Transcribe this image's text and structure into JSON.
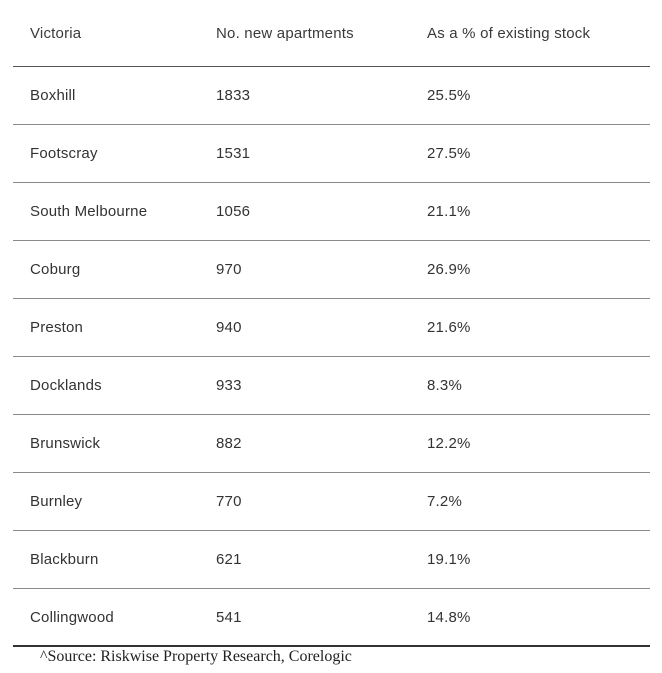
{
  "table": {
    "headers": [
      "Victoria",
      "No. new apartments",
      "As a % of existing stock"
    ],
    "rows": [
      [
        "Boxhill",
        "1833",
        "25.5%"
      ],
      [
        "Footscray",
        "1531",
        "27.5%"
      ],
      [
        "South Melbourne",
        "1056",
        "21.1%"
      ],
      [
        "Coburg",
        "970",
        "26.9%"
      ],
      [
        "Preston",
        "940",
        "21.6%"
      ],
      [
        "Docklands",
        "933",
        "8.3%"
      ],
      [
        "Brunswick",
        "882",
        "12.2%"
      ],
      [
        "Burnley",
        "770",
        "7.2%"
      ],
      [
        "Blackburn",
        "621",
        "19.1%"
      ],
      [
        "Collingwood",
        "541",
        "14.8%"
      ]
    ]
  },
  "source_note": "^Source: Riskwise Property Research, Corelogic"
}
